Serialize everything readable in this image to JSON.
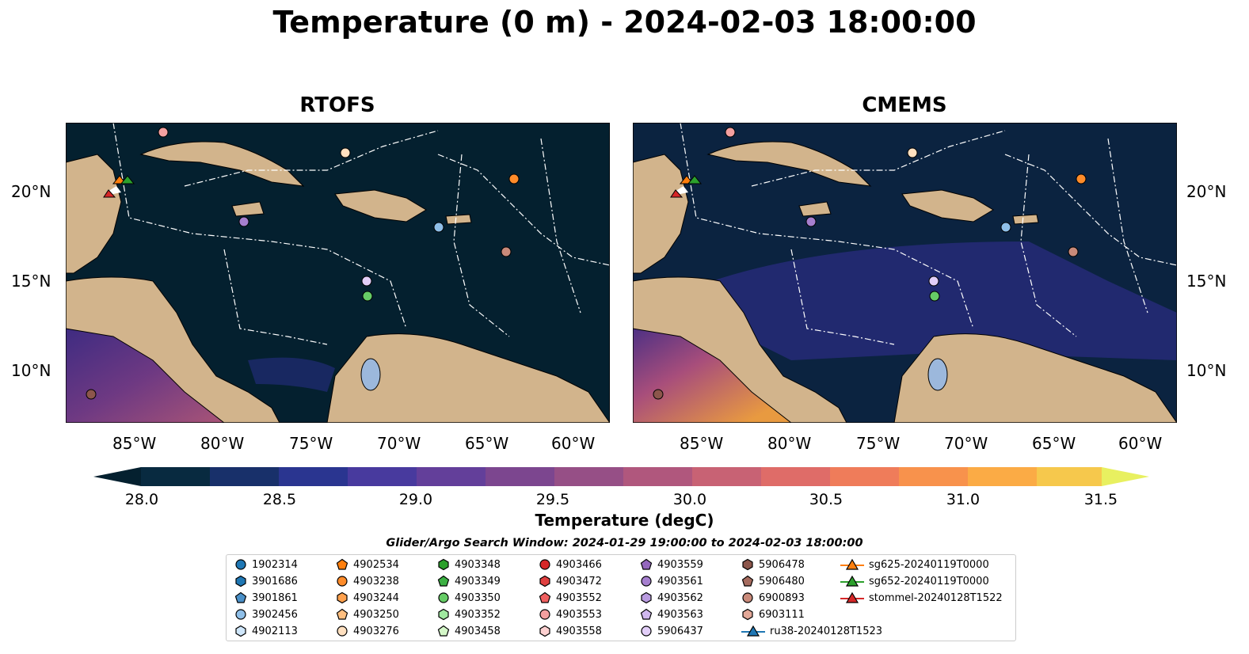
{
  "title": "Temperature (0 m) - 2024-02-03 18:00:00",
  "panels": [
    {
      "title": "RTOFS"
    },
    {
      "title": "CMEMS"
    }
  ],
  "lon_ticks": [
    "85°W",
    "80°W",
    "75°W",
    "70°W",
    "65°W",
    "60°W"
  ],
  "lat_ticks": [
    "20°N",
    "15°N",
    "10°N"
  ],
  "colors": {
    "land": "#d2b48c",
    "ocean_min": "#04202f",
    "lake": "#9cb8dc"
  },
  "colorbar": {
    "label": "Temperature (degC)",
    "range": [
      28.0,
      31.5
    ],
    "ticks": [
      "28.0",
      "28.5",
      "29.0",
      "29.5",
      "30.0",
      "30.5",
      "31.0",
      "31.5"
    ],
    "colormap": "thermal",
    "extend": "both"
  },
  "search_window": "Glider/Argo Search Window: 2024-01-29 19:00:00 to 2024-02-03 18:00:00",
  "legend": [
    {
      "label": "1902314",
      "marker": "circle",
      "color": "#1f77b4"
    },
    {
      "label": "3901686",
      "marker": "hexagon",
      "color": "#1f77b4"
    },
    {
      "label": "3901861",
      "marker": "pentagon",
      "color": "#4a90c8"
    },
    {
      "label": "3902456",
      "marker": "circle",
      "color": "#8fbfe8"
    },
    {
      "label": "4902113",
      "marker": "hexagon",
      "color": "#cfe6fa"
    },
    {
      "label": "4902534",
      "marker": "pentagon",
      "color": "#ff7f0e"
    },
    {
      "label": "4903238",
      "marker": "circle",
      "color": "#ff8c2a"
    },
    {
      "label": "4903244",
      "marker": "hexagon",
      "color": "#ffa14d"
    },
    {
      "label": "4903250",
      "marker": "pentagon",
      "color": "#ffbf80"
    },
    {
      "label": "4903276",
      "marker": "circle",
      "color": "#ffe0c0"
    },
    {
      "label": "4903348",
      "marker": "hexagon",
      "color": "#2ca02c"
    },
    {
      "label": "4903349",
      "marker": "pentagon",
      "color": "#3cb043"
    },
    {
      "label": "4903350",
      "marker": "circle",
      "color": "#66cc66"
    },
    {
      "label": "4903352",
      "marker": "hexagon",
      "color": "#a0e8a0"
    },
    {
      "label": "4903458",
      "marker": "pentagon",
      "color": "#d4f7c8"
    },
    {
      "label": "4903466",
      "marker": "circle",
      "color": "#d62728"
    },
    {
      "label": "4903472",
      "marker": "hexagon",
      "color": "#e04040"
    },
    {
      "label": "4903552",
      "marker": "pentagon",
      "color": "#f06060"
    },
    {
      "label": "4903553",
      "marker": "circle",
      "color": "#f4a0a0"
    },
    {
      "label": "4903558",
      "marker": "hexagon",
      "color": "#fcd0d0"
    },
    {
      "label": "4903559",
      "marker": "pentagon",
      "color": "#9467bd"
    },
    {
      "label": "4903561",
      "marker": "circle",
      "color": "#a67fcf"
    },
    {
      "label": "4903562",
      "marker": "hexagon",
      "color": "#b99be0"
    },
    {
      "label": "4903563",
      "marker": "pentagon",
      "color": "#d0b8ee"
    },
    {
      "label": "5906437",
      "marker": "circle",
      "color": "#e2cef8"
    },
    {
      "label": "5906478",
      "marker": "hexagon",
      "color": "#8c564b"
    },
    {
      "label": "5906480",
      "marker": "pentagon",
      "color": "#a56b5e"
    },
    {
      "label": "6900893",
      "marker": "circle",
      "color": "#c98a7a"
    },
    {
      "label": "6903111",
      "marker": "hexagon",
      "color": "#e3a898"
    },
    {
      "label": "ru38-20240128T1523",
      "marker": "triangle-line",
      "color": "#1f77b4"
    },
    {
      "label": "sg625-20240119T0000",
      "marker": "triangle-line",
      "color": "#ff7f0e"
    },
    {
      "label": "sg652-20240119T0000",
      "marker": "triangle-line",
      "color": "#2ca02c"
    },
    {
      "label": "stommel-20240128T1522",
      "marker": "triangle-line",
      "color": "#d62728"
    }
  ]
}
